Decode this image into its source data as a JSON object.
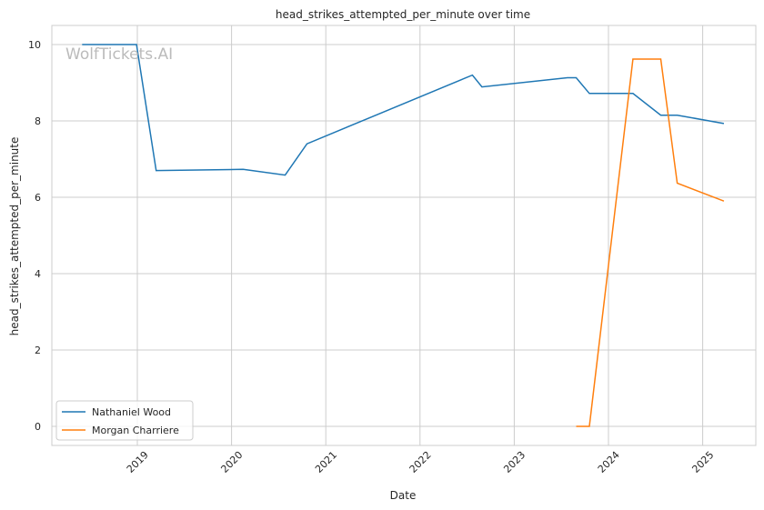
{
  "watermark": "WolfTickets.AI",
  "chart_data": {
    "type": "line",
    "title": "head_strikes_attempted_per_minute over time",
    "xlabel": "Date",
    "ylabel": "head_strikes_attempted_per_minute",
    "xlim": [
      "2018-03-01",
      "2025-06-01"
    ],
    "ylim": [
      -0.5,
      10.5
    ],
    "grid": true,
    "legend_position": "bottom-left",
    "x_ticks": [
      "2019",
      "2020",
      "2021",
      "2022",
      "2023",
      "2024",
      "2025"
    ],
    "y_ticks": [
      "0",
      "2",
      "4",
      "6",
      "8",
      "10"
    ],
    "series": [
      {
        "name": "Nathaniel Wood",
        "color": "#1f77b4",
        "x": [
          "2018-06-01",
          "2018-12-29",
          "2019-03-15",
          "2020-02-15",
          "2020-07-27",
          "2020-10-20",
          "2022-07-23",
          "2022-08-29",
          "2023-07-26",
          "2023-08-29",
          "2023-10-19",
          "2024-04-05",
          "2024-07-22",
          "2024-09-24",
          "2025-03-24"
        ],
        "y": [
          10.0,
          10.0,
          6.7,
          6.73,
          6.58,
          7.4,
          9.2,
          8.89,
          9.13,
          9.13,
          8.72,
          8.72,
          8.15,
          8.15,
          7.93
        ]
      },
      {
        "name": "Morgan Charriere",
        "color": "#ff7f0e",
        "x": [
          "2023-08-29",
          "2023-10-19",
          "2024-04-05",
          "2024-07-22",
          "2024-09-24",
          "2025-03-24"
        ],
        "y": [
          0.0,
          0.0,
          9.62,
          9.62,
          6.37,
          5.9
        ]
      }
    ]
  }
}
